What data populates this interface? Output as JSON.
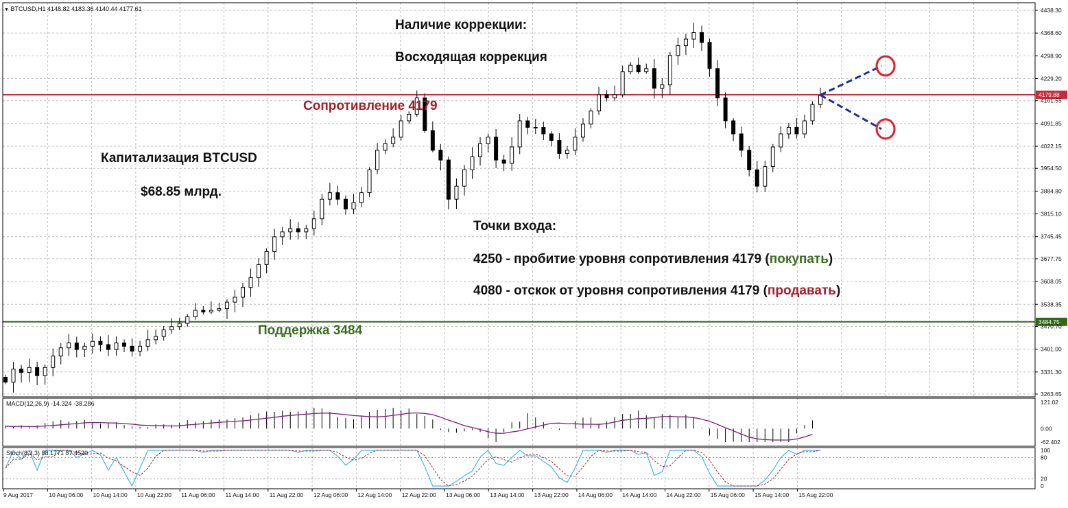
{
  "header": {
    "symbol_info": "BTCUSD,H1  4148.82 4183.36 4140.44 4177.61"
  },
  "annotations": {
    "correction_title": "Наличие коррекции:",
    "correction_value": "Восходящая коррекция",
    "resistance_label": "Сопротивление 4179",
    "support_label": "Поддержка 3484",
    "cap_title": "Капитализация BTCUSD",
    "cap_value": "$68.85 млрд.",
    "entry_title": "Точки входа:",
    "entry1_text": "4250 - пробитие уровня сопротивления 4179 (",
    "entry1_action": "покупать",
    "entry1_end": ")",
    "entry2_text": "4080 - отскок от уровня сопротивления 4179 (",
    "entry2_action": "продавать",
    "entry2_end": ")"
  },
  "colors": {
    "resistance": "#cc2a3c",
    "support": "#2f6b16",
    "bull_body": "#ffffff",
    "bear_body": "#000000",
    "grid": "#bfbfbf",
    "macd_signal": "#7a1d7a",
    "stoch_main": "#3fb7e6",
    "stoch_signal": "#b2222b",
    "forecast": "#1e2f8c",
    "circle": "#e0202a"
  },
  "chart_data": {
    "type": "candlestick",
    "y_ticks": [
      "4438.30",
      "4368.60",
      "4298.90",
      "4229.20",
      "4161.55",
      "4091.85",
      "4022.15",
      "3954.50",
      "3884.80",
      "3815.10",
      "3745.45",
      "3677.75",
      "3608.05",
      "3538.35",
      "3470.70",
      "3401.00",
      "3331.30",
      "3263.65"
    ],
    "ylim": [
      3263.65,
      4438.3
    ],
    "levels": {
      "resistance": 4179.88,
      "support": 3484.75
    },
    "level_labels": {
      "resistance": "4179.88",
      "support": "3484.75"
    },
    "x_labels": [
      "9 Aug 2017",
      "10 Aug 06:00",
      "10 Aug 14:00",
      "10 Aug 22:00",
      "11 Aug 06:00",
      "11 Aug 14:00",
      "11 Aug 22:00",
      "12 Aug 06:00",
      "12 Aug 14:00",
      "12 Aug 22:00",
      "13 Aug 06:00",
      "13 Aug 14:00",
      "13 Aug 22:00",
      "14 Aug 06:00",
      "14 Aug 14:00",
      "14 Aug 22:00",
      "15 Aug 06:00",
      "15 Aug 14:00",
      "15 Aug 22:00"
    ],
    "close_path": [
      3300,
      3340,
      3330,
      3345,
      3320,
      3345,
      3380,
      3405,
      3420,
      3400,
      3410,
      3425,
      3415,
      3400,
      3420,
      3410,
      3395,
      3410,
      3430,
      3440,
      3460,
      3470,
      3480,
      3500,
      3520,
      3515,
      3520,
      3525,
      3545,
      3560,
      3590,
      3620,
      3660,
      3700,
      3745,
      3760,
      3770,
      3760,
      3770,
      3800,
      3860,
      3880,
      3860,
      3830,
      3850,
      3880,
      3950,
      4010,
      4030,
      4050,
      4100,
      4120,
      4170,
      4070,
      4010,
      3980,
      3860,
      3900,
      3950,
      3990,
      4030,
      4050,
      3980,
      3970,
      4020,
      4100,
      4080,
      4080,
      4060,
      4040,
      4000,
      4010,
      4050,
      4090,
      4130,
      4180,
      4170,
      4180,
      4250,
      4270,
      4250,
      4260,
      4200,
      4210,
      4300,
      4330,
      4350,
      4370,
      4340,
      4260,
      4170,
      4100,
      4060,
      4010,
      3950,
      3900,
      3960,
      4020,
      4060,
      4080,
      4060,
      4100,
      4150,
      4177.61
    ],
    "forecast": {
      "current": 4179,
      "targets": [
        4250,
        4080
      ]
    },
    "macd": {
      "label": "MACD(12,26,9) -14.324 -38.286",
      "ticks": [
        "121.02",
        "0.00",
        "-62.402"
      ],
      "range": [
        -62.402,
        121.02
      ]
    },
    "stoch": {
      "label": "Stoch(8,3,3) 88.1771 87.4520",
      "ticks": [
        "100",
        "80",
        "20",
        "0"
      ],
      "range": [
        0,
        100
      ]
    }
  }
}
